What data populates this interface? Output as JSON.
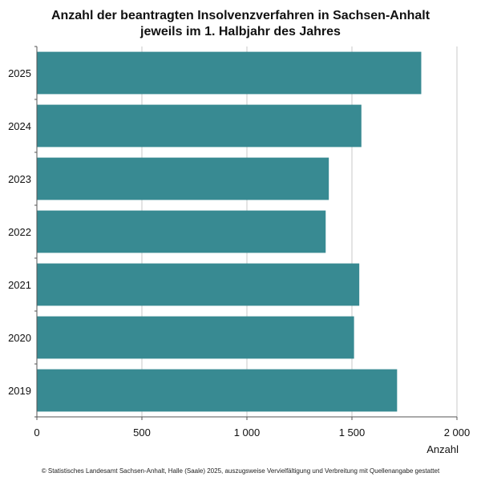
{
  "header": {
    "title_line1": "Anzahl der beantragten Insolvenzverfahren in Sachsen-Anhalt",
    "title_line2": "jeweils im 1. Halbjahr des Jahres"
  },
  "footer": {
    "text": "© Statistisches Landesamt Sachsen-Anhalt, Halle (Saale) 2025, auszugsweise Vervielfältigung und Verbreitung mit Quellenangabe gestattet"
  },
  "chart_data": {
    "type": "bar",
    "orientation": "horizontal",
    "categories": [
      "2025",
      "2024",
      "2023",
      "2022",
      "2021",
      "2020",
      "2019"
    ],
    "values": [
      1830,
      1545,
      1390,
      1375,
      1535,
      1510,
      1715
    ],
    "xlabel": "Anzahl",
    "xlim": [
      0,
      2000
    ],
    "xticks": [
      0,
      500,
      1000,
      1500,
      2000
    ],
    "xtick_labels": [
      "0",
      "500",
      "1 000",
      "1 500",
      "2 000"
    ],
    "grid": "vertical",
    "legend": "none",
    "bar_color": "#388a92"
  }
}
